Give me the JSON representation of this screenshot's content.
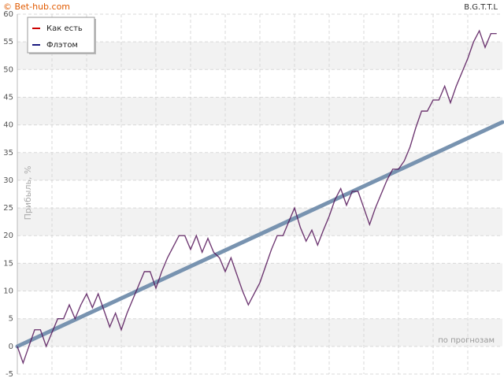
{
  "chart_data": {
    "type": "line",
    "watermark": "© Bet-hub.com",
    "title": "B.G.T.T.L",
    "y_label": "Прибыль, %",
    "x_label": "по прогнозам",
    "ylim": [
      -5,
      60
    ],
    "yticks": [
      -5,
      0,
      5,
      10,
      15,
      20,
      25,
      30,
      35,
      40,
      45,
      50,
      55,
      60
    ],
    "grid": true,
    "legend": "top-left",
    "series": [
      {
        "name": "Как есть",
        "color": "#cc0000",
        "values": [
          0,
          -3,
          0,
          3,
          3,
          0,
          2.5,
          5,
          5,
          7.5,
          5,
          7.5,
          9.5,
          7,
          9.5,
          6.5,
          3.5,
          6,
          3,
          6,
          8.5,
          11,
          13.5,
          13.5,
          10.5,
          13.5,
          16,
          18,
          20,
          20,
          17.5,
          20,
          17,
          19.5,
          17,
          16,
          13.5,
          16,
          13,
          10,
          7.5,
          9.5,
          11.5,
          14.5,
          17.5,
          20,
          20,
          22.5,
          25,
          21.5,
          19,
          21,
          18.3,
          21,
          23.5,
          26.5,
          28.5,
          25.5,
          28,
          28,
          25,
          22,
          25,
          27.5,
          30,
          32,
          32,
          33.5,
          36,
          39.5,
          42.5,
          42.5,
          44.5,
          44.5,
          47,
          44,
          47,
          49.5,
          52,
          55,
          57,
          54,
          56.5,
          56.5
        ]
      },
      {
        "name": "Флэтом",
        "color": "#1a1a80",
        "values": [
          0,
          -3,
          0,
          3,
          3,
          0,
          2.5,
          5,
          5,
          7.5,
          5,
          7.5,
          9.5,
          7,
          9.5,
          6.5,
          3.5,
          6,
          3,
          6,
          8.5,
          11,
          13.5,
          13.5,
          10.5,
          13.5,
          16,
          18,
          20,
          20,
          17.5,
          20,
          17,
          19.5,
          17,
          16,
          13.5,
          16,
          13,
          10,
          7.5,
          9.5,
          11.5,
          14.5,
          17.5,
          20,
          20,
          22.5,
          25,
          21.5,
          19,
          21,
          18.3,
          21,
          23.5,
          26.5,
          28.5,
          25.5,
          28,
          28,
          25,
          22,
          25,
          27.5,
          30,
          32,
          32,
          33.5,
          36,
          39.5,
          42.5,
          42.5,
          44.5,
          44.5,
          47,
          44,
          47,
          49.5,
          52,
          55,
          57,
          54,
          56.5,
          56.5
        ]
      }
    ],
    "trend": {
      "color": "#7893b0",
      "x": [
        0,
        84
      ],
      "values": [
        0,
        40.5
      ]
    }
  }
}
